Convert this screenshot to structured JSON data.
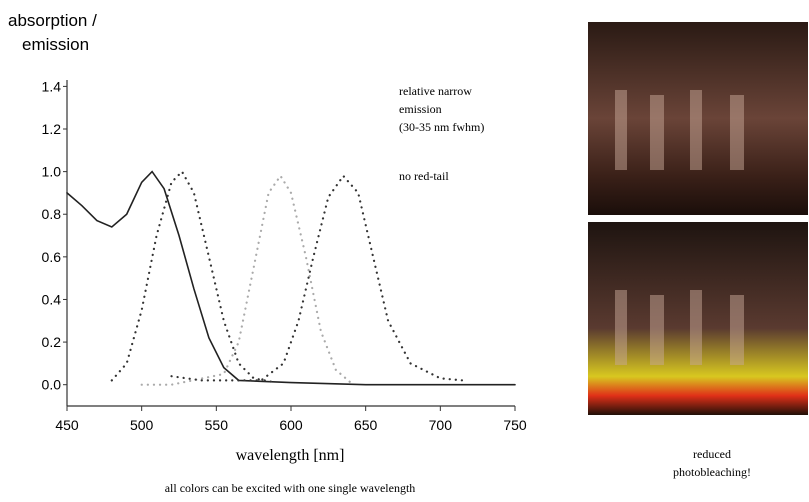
{
  "chart_data": {
    "type": "line",
    "y_label": [
      "absorption /",
      "emission"
    ],
    "x_label": "wavelength [nm]",
    "annotations": [
      "relative narrow",
      "emission",
      "(30-35 nm fwhm)",
      "no red-tail"
    ],
    "caption": "all colors can be excited with one single wavelength",
    "photo_caption": [
      "reduced",
      "photobleaching!"
    ],
    "xlim": [
      450,
      750
    ],
    "xticks": [
      450,
      500,
      550,
      600,
      650,
      700,
      750
    ],
    "ylim": [
      -0.1,
      1.43
    ],
    "yticks": [
      {
        "value": 0,
        "label": "0.0"
      },
      {
        "value": 0.2,
        "label": "0.2"
      },
      {
        "value": 0.4,
        "label": "0.4"
      },
      {
        "value": 0.6,
        "label": "0.6"
      },
      {
        "value": 0.8,
        "label": "0.8"
      },
      {
        "value": 1,
        "label": "1.0"
      },
      {
        "value": 1.2,
        "label": "1.2"
      },
      {
        "value": 1.4,
        "label": "1.4"
      }
    ],
    "series": [
      {
        "color": "#222222",
        "dash": "solid",
        "x": [
          450,
          460,
          470,
          480,
          490,
          500,
          507,
          515,
          525,
          535,
          545,
          555,
          565,
          600,
          650,
          700,
          750
        ],
        "values": [
          0.9,
          0.84,
          0.77,
          0.74,
          0.8,
          0.95,
          1.0,
          0.92,
          0.7,
          0.45,
          0.22,
          0.08,
          0.02,
          0.01,
          0,
          0,
          0
        ]
      },
      {
        "color": "#333333",
        "dash": "dotted",
        "x": [
          480,
          490,
          500,
          510,
          520,
          527,
          535,
          545,
          555,
          565,
          575,
          590
        ],
        "values": [
          0.02,
          0.1,
          0.35,
          0.7,
          0.95,
          1.0,
          0.9,
          0.6,
          0.3,
          0.1,
          0.03,
          0.01
        ]
      },
      {
        "color": "#aaaaaa",
        "dash": "dotted",
        "x": [
          500,
          520,
          555,
          565,
          575,
          585,
          593,
          600,
          610,
          620,
          630,
          640
        ],
        "values": [
          0,
          0,
          0.05,
          0.2,
          0.55,
          0.9,
          0.98,
          0.9,
          0.6,
          0.25,
          0.07,
          0.01
        ]
      },
      {
        "color": "#333333",
        "dash": "dotted",
        "x": [
          520,
          540,
          580,
          595,
          605,
          615,
          625,
          635,
          645,
          655,
          665,
          680,
          700,
          715
        ],
        "values": [
          0.04,
          0.02,
          0.02,
          0.1,
          0.3,
          0.6,
          0.88,
          0.98,
          0.9,
          0.6,
          0.3,
          0.1,
          0.03,
          0.02
        ]
      }
    ]
  }
}
